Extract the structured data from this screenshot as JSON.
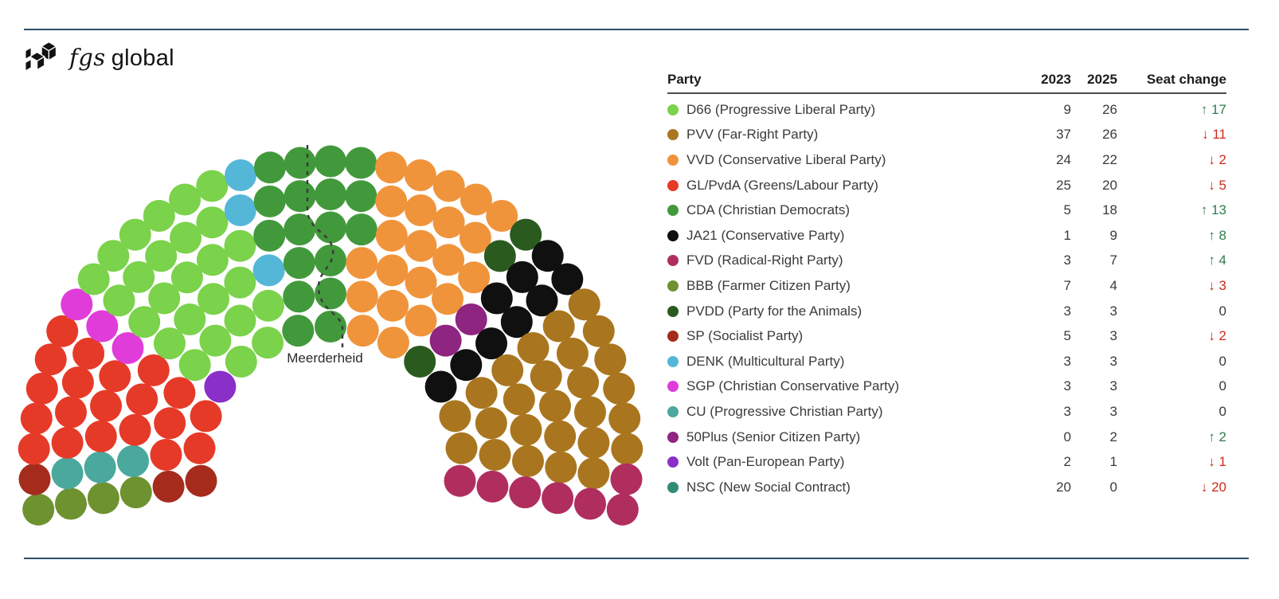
{
  "logo": {
    "brand_italic": "fgs",
    "brand_regular": "global"
  },
  "icons": {
    "up_arrow": "↑",
    "down_arrow": "↓"
  },
  "colors": {
    "positive_change": "#2F7D4C",
    "negative_change": "#CD2A1A",
    "rule_line": "#2C5069",
    "body_text": "#3A3A3A"
  },
  "hemicycle": {
    "total_seats": 150,
    "majority_label": "Meerderheid",
    "party_order_left_to_right": [
      "BBB",
      "SP",
      "CU",
      "GL/PvdA",
      "SGP",
      "Volt",
      "D66",
      "DENK",
      "CDA",
      "VVD",
      "PVDD",
      "50Plus",
      "JA21",
      "PVV",
      "FVD"
    ]
  },
  "table": {
    "headers": [
      "Party",
      "2023",
      "2025",
      "Seat change"
    ],
    "rows": [
      {
        "abbr": "D66",
        "label": "D66 (Progressive Liberal Party)",
        "color": "#7BD24B",
        "seats_2023": 9,
        "seats_2025": 26,
        "change_dir": "up",
        "change_value": 17
      },
      {
        "abbr": "PVV",
        "label": "PVV (Far-Right Party)",
        "color": "#A9761F",
        "seats_2023": 37,
        "seats_2025": 26,
        "change_dir": "down",
        "change_value": 11
      },
      {
        "abbr": "VVD",
        "label": "VVD (Conservative Liberal Party)",
        "color": "#F0943C",
        "seats_2023": 24,
        "seats_2025": 22,
        "change_dir": "down",
        "change_value": 2
      },
      {
        "abbr": "GL/PvdA",
        "label": "GL/PvdA (Greens/Labour Party)",
        "color": "#E63A28",
        "seats_2023": 25,
        "seats_2025": 20,
        "change_dir": "down",
        "change_value": 5
      },
      {
        "abbr": "CDA",
        "label": "CDA (Christian Democrats)",
        "color": "#42993C",
        "seats_2023": 5,
        "seats_2025": 18,
        "change_dir": "up",
        "change_value": 13
      },
      {
        "abbr": "JA21",
        "label": "JA21 (Conservative Party)",
        "color": "#101010",
        "seats_2023": 1,
        "seats_2025": 9,
        "change_dir": "up",
        "change_value": 8
      },
      {
        "abbr": "FVD",
        "label": "FVD (Radical-Right Party)",
        "color": "#B02E5E",
        "seats_2023": 3,
        "seats_2025": 7,
        "change_dir": "up",
        "change_value": 4
      },
      {
        "abbr": "BBB",
        "label": "BBB (Farmer Citizen Party)",
        "color": "#6E9230",
        "seats_2023": 7,
        "seats_2025": 4,
        "change_dir": "down",
        "change_value": 3
      },
      {
        "abbr": "PVDD",
        "label": "PVDD (Party for the Animals)",
        "color": "#2B5A1F",
        "seats_2023": 3,
        "seats_2025": 3,
        "change_dir": "none",
        "change_value": 0
      },
      {
        "abbr": "SP",
        "label": "SP (Socialist Party)",
        "color": "#A52C1D",
        "seats_2023": 5,
        "seats_2025": 3,
        "change_dir": "down",
        "change_value": 2
      },
      {
        "abbr": "DENK",
        "label": "DENK (Multicultural Party)",
        "color": "#55B7D8",
        "seats_2023": 3,
        "seats_2025": 3,
        "change_dir": "none",
        "change_value": 0
      },
      {
        "abbr": "SGP",
        "label": "SGP (Christian Conservative Party)",
        "color": "#E03CDA",
        "seats_2023": 3,
        "seats_2025": 3,
        "change_dir": "none",
        "change_value": 0
      },
      {
        "abbr": "CU",
        "label": "CU (Progressive Christian Party)",
        "color": "#4AA89D",
        "seats_2023": 3,
        "seats_2025": 3,
        "change_dir": "none",
        "change_value": 0
      },
      {
        "abbr": "50Plus",
        "label": "50Plus (Senior Citizen Party)",
        "color": "#8E2580",
        "seats_2023": 0,
        "seats_2025": 2,
        "change_dir": "up",
        "change_value": 2
      },
      {
        "abbr": "Volt",
        "label": "Volt (Pan-European Party)",
        "color": "#8A2FC8",
        "seats_2023": 2,
        "seats_2025": 1,
        "change_dir": "down",
        "change_value": 1
      },
      {
        "abbr": "NSC",
        "label": "NSC (New Social Contract)",
        "color": "#2F8C77",
        "seats_2023": 20,
        "seats_2025": 0,
        "change_dir": "down",
        "change_value": 20
      }
    ]
  },
  "chart_data": {
    "type": "table",
    "categories": [
      "D66 (Progressive Liberal Party)",
      "PVV (Far-Right Party)",
      "VVD (Conservative Liberal Party)",
      "GL/PvdA (Greens/Labour Party)",
      "CDA (Christian Democrats)",
      "JA21 (Conservative Party)",
      "FVD (Radical-Right Party)",
      "BBB (Farmer Citizen Party)",
      "PVDD (Party for the Animals)",
      "SP (Socialist Party)",
      "DENK (Multicultural Party)",
      "SGP (Christian Conservative Party)",
      "CU (Progressive Christian Party)",
      "50Plus (Senior Citizen Party)",
      "Volt (Pan-European Party)",
      "NSC (New Social Contract)"
    ],
    "series": [
      {
        "name": "2023",
        "values": [
          9,
          37,
          24,
          25,
          5,
          1,
          3,
          7,
          3,
          5,
          3,
          3,
          3,
          0,
          2,
          20
        ]
      },
      {
        "name": "2025",
        "values": [
          26,
          26,
          22,
          20,
          18,
          9,
          7,
          4,
          3,
          3,
          3,
          3,
          3,
          2,
          1,
          0
        ]
      },
      {
        "name": "Seat change",
        "values": [
          17,
          -11,
          -2,
          -5,
          13,
          8,
          4,
          -3,
          0,
          -2,
          0,
          0,
          0,
          2,
          -1,
          -20
        ]
      }
    ],
    "hemicycle": {
      "total_seats": 150,
      "rows_of_seats": [
        15,
        19,
        23,
        27,
        31,
        35
      ],
      "majority_line_label": "Meerderheid",
      "seat_order_left_to_right": [
        "BBB",
        "SP",
        "CU",
        "GL/PvdA",
        "SGP",
        "Volt",
        "D66",
        "DENK",
        "CDA",
        "VVD",
        "PVDD",
        "50Plus",
        "JA21",
        "PVV",
        "FVD"
      ]
    }
  }
}
